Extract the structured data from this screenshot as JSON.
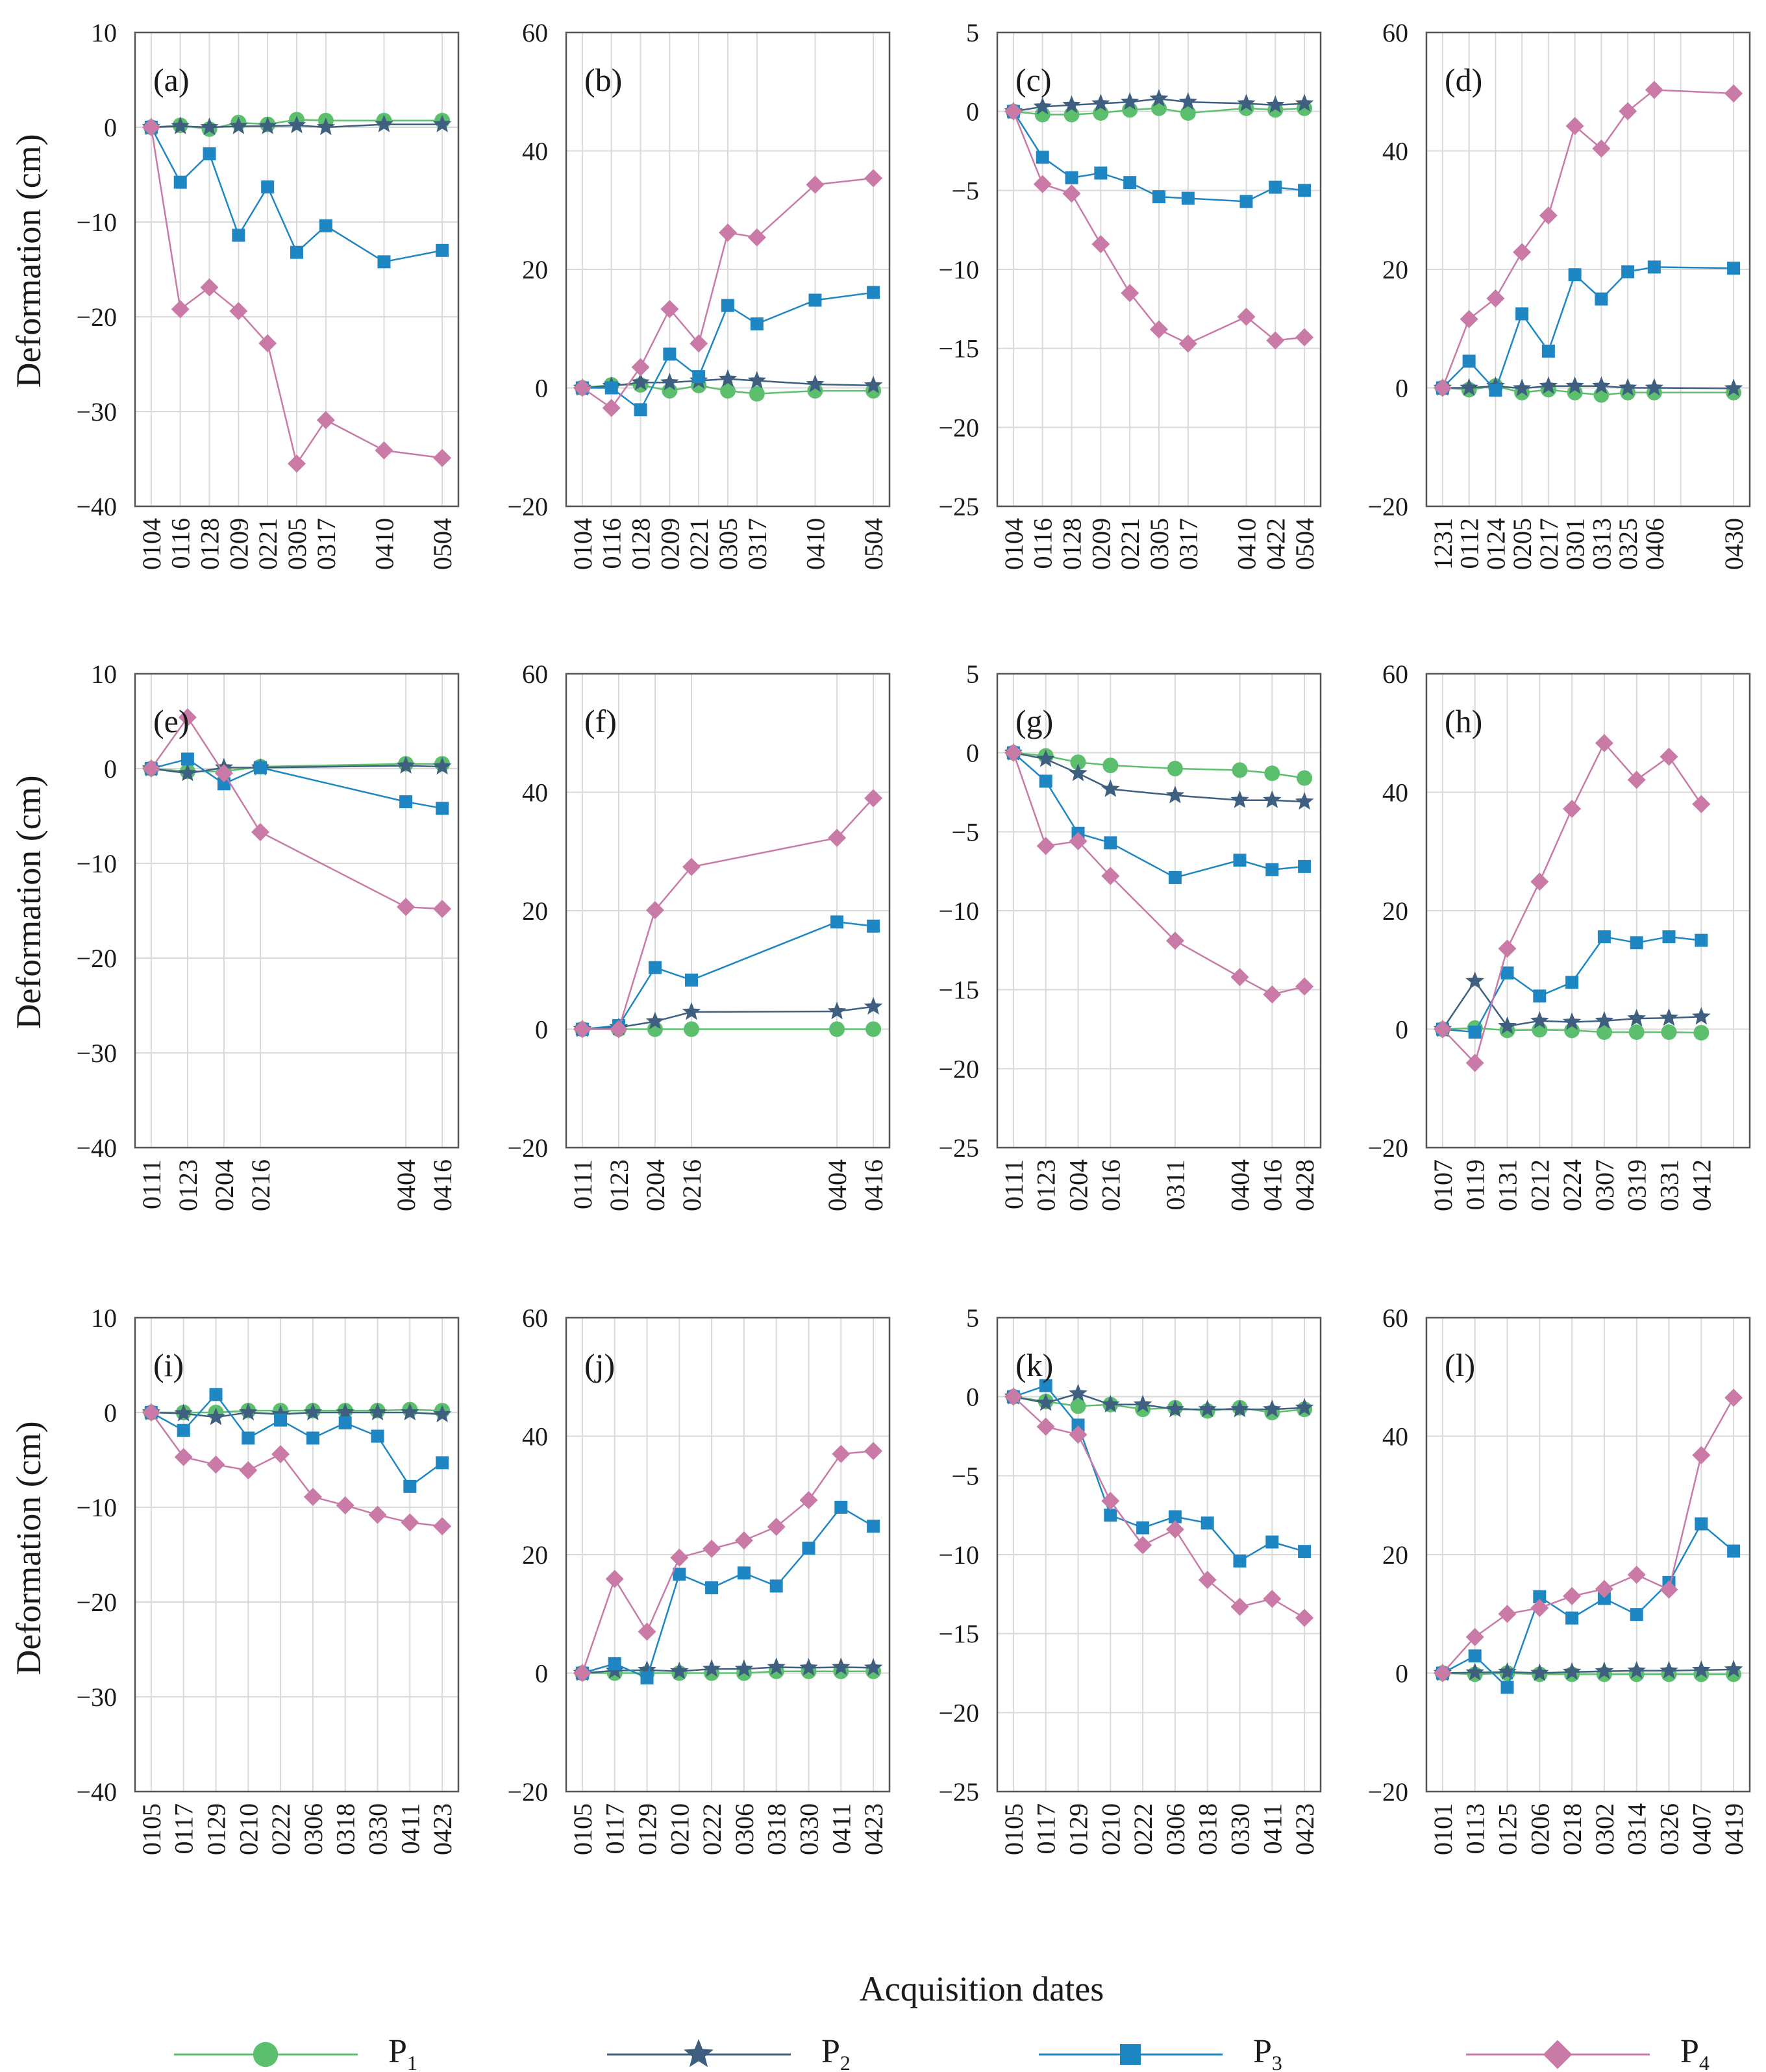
{
  "figure": {
    "ylabel": "Deformation (cm)",
    "xlabel": "Acquisition dates"
  },
  "legend": [
    {
      "key": "P1",
      "base": "P",
      "sub": "1"
    },
    {
      "key": "P2",
      "base": "P",
      "sub": "2"
    },
    {
      "key": "P3",
      "base": "P",
      "sub": "3"
    },
    {
      "key": "P4",
      "base": "P",
      "sub": "4"
    }
  ],
  "series_styles": {
    "P1": {
      "color": "#5cbf6e",
      "marker": "circle"
    },
    "P2": {
      "color": "#3f5f80",
      "marker": "star"
    },
    "P3": {
      "color": "#1f86c4",
      "marker": "square"
    },
    "P4": {
      "color": "#c97aa6",
      "marker": "diamond"
    }
  },
  "chart_data": [
    {
      "type": "line",
      "label": "(a)",
      "ylim": [
        -40,
        10
      ],
      "yticks": [
        10,
        0,
        -10,
        -20,
        -30,
        -40
      ],
      "x": [
        0,
        12,
        24,
        36,
        48,
        60,
        72,
        96,
        120
      ],
      "xticks": [
        "0104",
        "0116",
        "0128",
        "0209",
        "0221",
        "0305",
        "0317",
        "0410",
        "0504"
      ],
      "series": [
        {
          "name": "P1",
          "values": [
            0,
            0.2,
            -0.2,
            0.5,
            0.3,
            0.8,
            0.7,
            0.7,
            0.7
          ]
        },
        {
          "name": "P2",
          "values": [
            0,
            0.1,
            0,
            0.1,
            0.1,
            0.2,
            0,
            0.3,
            0.3
          ]
        },
        {
          "name": "P3",
          "values": [
            0,
            -5.8,
            -2.8,
            -11.4,
            -6.3,
            -13.2,
            -10.4,
            -14.2,
            -13
          ]
        },
        {
          "name": "P4",
          "values": [
            0,
            -19.2,
            -16.9,
            -19.4,
            -22.8,
            -35.5,
            -30.9,
            -34.1,
            -34.9
          ]
        }
      ]
    },
    {
      "type": "line",
      "label": "(b)",
      "ylim": [
        -20,
        60
      ],
      "yticks": [
        60,
        40,
        20,
        0,
        -20
      ],
      "x": [
        0,
        12,
        24,
        36,
        48,
        60,
        72,
        96,
        120
      ],
      "xticks": [
        "0104",
        "0116",
        "0128",
        "0209",
        "0221",
        "0305",
        "0317",
        "0410",
        "0504"
      ],
      "series": [
        {
          "name": "P1",
          "values": [
            0,
            0.5,
            0.5,
            -0.5,
            0.4,
            -0.5,
            -1,
            -0.5,
            -0.5
          ]
        },
        {
          "name": "P2",
          "values": [
            0,
            0.3,
            0.9,
            0.9,
            1.2,
            1.5,
            1.2,
            0.6,
            0.4
          ]
        },
        {
          "name": "P3",
          "values": [
            0,
            0,
            -3.7,
            5.7,
            1.9,
            13.9,
            10.8,
            14.8,
            16.1
          ]
        },
        {
          "name": "P4",
          "values": [
            0,
            -3.4,
            3.5,
            13.3,
            7.5,
            26.2,
            25.4,
            34.3,
            35.4
          ]
        }
      ]
    },
    {
      "type": "line",
      "label": "(c)",
      "ylim": [
        -25,
        5
      ],
      "yticks": [
        5,
        0,
        -5,
        -10,
        -15,
        -20,
        -25
      ],
      "x": [
        0,
        12,
        24,
        36,
        48,
        60,
        72,
        96,
        108,
        120
      ],
      "xticks": [
        "0104",
        "0116",
        "0128",
        "0209",
        "0221",
        "0305",
        "0317",
        "0410",
        "0422",
        "0504"
      ],
      "series": [
        {
          "name": "P1",
          "values": [
            0,
            -0.2,
            -0.2,
            -0.1,
            0.1,
            0.2,
            -0.1,
            0.2,
            0.1,
            0.2
          ]
        },
        {
          "name": "P2",
          "values": [
            0,
            0.3,
            0.4,
            0.5,
            0.6,
            0.8,
            0.6,
            0.5,
            0.4,
            0.5
          ]
        },
        {
          "name": "P3",
          "values": [
            0,
            -2.9,
            -4.2,
            -3.9,
            -4.5,
            -5.4,
            -5.5,
            -5.7,
            -4.8,
            -5
          ]
        },
        {
          "name": "P4",
          "values": [
            0,
            -4.6,
            -5.2,
            -8.4,
            -11.5,
            -13.8,
            -14.7,
            -13,
            -14.5,
            -14.3
          ]
        }
      ]
    },
    {
      "type": "line",
      "label": "(d)",
      "ylim": [
        -20,
        60
      ],
      "yticks": [
        60,
        40,
        20,
        0,
        -20
      ],
      "x": [
        0,
        12,
        24,
        36,
        48,
        60,
        72,
        84,
        96,
        108,
        132
      ],
      "xticks": [
        "1231",
        "0112",
        "0124",
        "0205",
        "0217",
        "0301",
        "0313",
        "0325",
        "0406",
        "",
        "0430"
      ],
      "series": [
        {
          "name": "P1",
          "values": [
            0,
            -0.3,
            0.3,
            -0.8,
            -0.3,
            -0.8,
            -1.2,
            -0.8,
            -0.8,
            null,
            -0.8
          ]
        },
        {
          "name": "P2",
          "values": [
            0,
            0,
            0.3,
            -0.1,
            0.3,
            0.3,
            0.3,
            0,
            0,
            null,
            -0.1
          ]
        },
        {
          "name": "P3",
          "values": [
            0,
            4.5,
            -0.4,
            12.5,
            6.2,
            19.1,
            15,
            19.6,
            20.4,
            null,
            20.2
          ]
        },
        {
          "name": "P4",
          "values": [
            0,
            11.6,
            15.1,
            22.9,
            29.1,
            44.2,
            40.4,
            46.7,
            50.3,
            null,
            49.7
          ]
        }
      ]
    },
    {
      "type": "line",
      "label": "(e)",
      "ylim": [
        -40,
        10
      ],
      "yticks": [
        10,
        0,
        -10,
        -20,
        -30,
        -40
      ],
      "x": [
        0,
        12,
        24,
        36,
        84,
        96
      ],
      "xticks": [
        "0111",
        "0123",
        "0204",
        "0216",
        "0404",
        "0416"
      ],
      "series": [
        {
          "name": "P1",
          "values": [
            0,
            -0.3,
            -0.3,
            0.2,
            0.5,
            0.5
          ]
        },
        {
          "name": "P2",
          "values": [
            0,
            -0.5,
            0.1,
            0.1,
            0.3,
            0.2
          ]
        },
        {
          "name": "P3",
          "values": [
            0,
            1,
            -1.6,
            0.1,
            -3.5,
            -4.2
          ]
        },
        {
          "name": "P4",
          "values": [
            0,
            5.4,
            -0.5,
            -6.7,
            -14.6,
            -14.8
          ]
        }
      ]
    },
    {
      "type": "line",
      "label": "(f)",
      "ylim": [
        -20,
        60
      ],
      "yticks": [
        60,
        40,
        20,
        0,
        -20
      ],
      "x": [
        0,
        12,
        24,
        36,
        84,
        96
      ],
      "xticks": [
        "0111",
        "0123",
        "0204",
        "0216",
        "0404",
        "0416"
      ],
      "series": [
        {
          "name": "P1",
          "values": [
            0,
            0,
            0,
            0,
            0,
            0
          ]
        },
        {
          "name": "P2",
          "values": [
            0,
            0.3,
            1.3,
            2.9,
            3,
            3.8
          ]
        },
        {
          "name": "P3",
          "values": [
            0,
            0.6,
            10.4,
            8.3,
            18.1,
            17.4
          ]
        },
        {
          "name": "P4",
          "values": [
            0,
            0,
            20.1,
            27.4,
            32.3,
            39
          ]
        }
      ]
    },
    {
      "type": "line",
      "label": "(g)",
      "ylim": [
        -25,
        5
      ],
      "yticks": [
        5,
        0,
        -5,
        -10,
        -15,
        -20,
        -25
      ],
      "x": [
        0,
        12,
        24,
        36,
        60,
        84,
        96,
        108
      ],
      "xticks": [
        "0111",
        "0123",
        "0204",
        "0216",
        "0311",
        "0404",
        "0416",
        "0428"
      ],
      "series": [
        {
          "name": "P1",
          "values": [
            0,
            -0.2,
            -0.6,
            -0.8,
            -1,
            -1.1,
            -1.3,
            -1.6
          ]
        },
        {
          "name": "P2",
          "values": [
            0,
            -0.4,
            -1.3,
            -2.3,
            -2.7,
            -3,
            -3,
            -3.1
          ]
        },
        {
          "name": "P3",
          "values": [
            0,
            -1.8,
            -5.1,
            -5.7,
            -7.9,
            -6.8,
            -7.4,
            -7.2
          ]
        },
        {
          "name": "P4",
          "values": [
            0,
            -5.9,
            -5.6,
            -7.8,
            -11.9,
            -14.2,
            -15.3,
            -14.8
          ]
        }
      ]
    },
    {
      "type": "line",
      "label": "(h)",
      "ylim": [
        -20,
        60
      ],
      "yticks": [
        60,
        40,
        20,
        0,
        -20
      ],
      "x": [
        0,
        12,
        24,
        36,
        48,
        60,
        72,
        84,
        96,
        108
      ],
      "xticks": [
        "0107",
        "0119",
        "0131",
        "0212",
        "0224",
        "0307",
        "0319",
        "0331",
        "0412",
        ""
      ],
      "series": [
        {
          "name": "P1",
          "values": [
            0,
            0.2,
            -0.2,
            -0.1,
            -0.2,
            -0.5,
            -0.5,
            -0.5,
            -0.6,
            null
          ]
        },
        {
          "name": "P2",
          "values": [
            0,
            8.1,
            0.5,
            1.4,
            1.2,
            1.4,
            1.8,
            1.9,
            2.1,
            null
          ]
        },
        {
          "name": "P3",
          "values": [
            0,
            -0.5,
            9.5,
            5.6,
            7.9,
            15.6,
            14.6,
            15.6,
            15,
            null
          ]
        },
        {
          "name": "P4",
          "values": [
            0,
            -5.7,
            13.6,
            24.9,
            37.2,
            48.3,
            42.1,
            46,
            38,
            null
          ]
        }
      ]
    },
    {
      "type": "line",
      "label": "(i)",
      "ylim": [
        -40,
        10
      ],
      "yticks": [
        10,
        0,
        -10,
        -20,
        -30,
        -40
      ],
      "x": [
        0,
        12,
        24,
        36,
        48,
        60,
        72,
        84,
        96,
        108
      ],
      "xticks": [
        "0105",
        "0117",
        "0129",
        "0210",
        "0222",
        "0306",
        "0318",
        "0330",
        "0411",
        "0423"
      ],
      "series": [
        {
          "name": "P1",
          "values": [
            0,
            0,
            0,
            0.2,
            0.2,
            0.2,
            0.2,
            0.2,
            0.3,
            0.2
          ]
        },
        {
          "name": "P2",
          "values": [
            0,
            -0.1,
            -0.5,
            0,
            -0.2,
            0,
            0,
            0,
            0,
            -0.2
          ]
        },
        {
          "name": "P3",
          "values": [
            0,
            -1.9,
            1.9,
            -2.7,
            -0.8,
            -2.7,
            -1.1,
            -2.5,
            -7.8,
            -5.3
          ]
        },
        {
          "name": "P4",
          "values": [
            0,
            -4.7,
            -5.5,
            -6.1,
            -4.4,
            -8.9,
            -9.8,
            -10.8,
            -11.6,
            -12
          ]
        }
      ]
    },
    {
      "type": "line",
      "label": "(j)",
      "ylim": [
        -20,
        60
      ],
      "yticks": [
        60,
        40,
        20,
        0,
        -20
      ],
      "x": [
        0,
        12,
        24,
        36,
        48,
        60,
        72,
        84,
        96,
        108
      ],
      "xticks": [
        "0105",
        "0117",
        "0129",
        "0210",
        "0222",
        "0306",
        "0318",
        "0330",
        "0411",
        "0423"
      ],
      "series": [
        {
          "name": "P1",
          "values": [
            0,
            0,
            0,
            0,
            0,
            0,
            0.3,
            0.3,
            0.3,
            0.3
          ]
        },
        {
          "name": "P2",
          "values": [
            0,
            0.4,
            0.5,
            0.3,
            0.7,
            0.7,
            1,
            0.9,
            1,
            0.9
          ]
        },
        {
          "name": "P3",
          "values": [
            0,
            1.6,
            -0.8,
            16.7,
            14.4,
            16.9,
            14.7,
            21.1,
            28,
            24.8
          ]
        },
        {
          "name": "P4",
          "values": [
            0,
            15.9,
            7,
            19.5,
            21,
            22.4,
            24.7,
            29.2,
            37,
            37.5
          ]
        }
      ]
    },
    {
      "type": "line",
      "label": "(k)",
      "ylim": [
        -25,
        5
      ],
      "yticks": [
        5,
        0,
        -5,
        -10,
        -15,
        -20,
        -25
      ],
      "x": [
        0,
        12,
        24,
        36,
        48,
        60,
        72,
        84,
        96,
        108
      ],
      "xticks": [
        "0105",
        "0117",
        "0129",
        "0210",
        "0222",
        "0306",
        "0318",
        "0330",
        "0411",
        "0423"
      ],
      "series": [
        {
          "name": "P1",
          "values": [
            0,
            -0.3,
            -0.6,
            -0.5,
            -0.8,
            -0.7,
            -0.9,
            -0.7,
            -1,
            -0.8
          ]
        },
        {
          "name": "P2",
          "values": [
            0,
            -0.4,
            0.2,
            -0.5,
            -0.5,
            -0.8,
            -0.8,
            -0.8,
            -0.8,
            -0.7
          ]
        },
        {
          "name": "P3",
          "values": [
            0,
            0.7,
            -1.8,
            -7.5,
            -8.3,
            -7.6,
            -8,
            -10.4,
            -9.2,
            -9.8
          ]
        },
        {
          "name": "P4",
          "values": [
            0,
            -1.9,
            -2.4,
            -6.6,
            -9.4,
            -8.4,
            -11.6,
            -13.3,
            -12.8,
            -14
          ]
        }
      ]
    },
    {
      "type": "line",
      "label": "(l)",
      "ylim": [
        -20,
        60
      ],
      "yticks": [
        60,
        40,
        20,
        0,
        -20
      ],
      "x": [
        0,
        12,
        24,
        36,
        48,
        60,
        72,
        84,
        96,
        108
      ],
      "xticks": [
        "0101",
        "0113",
        "0125",
        "0206",
        "0218",
        "0302",
        "0314",
        "0326",
        "0407",
        "0419"
      ],
      "series": [
        {
          "name": "P1",
          "values": [
            0,
            -0.2,
            0,
            -0.2,
            -0.2,
            -0.2,
            -0.2,
            -0.2,
            -0.2,
            -0.2
          ]
        },
        {
          "name": "P2",
          "values": [
            0,
            0.1,
            0.2,
            0,
            0.2,
            0.3,
            0.4,
            0.4,
            0.5,
            0.6
          ]
        },
        {
          "name": "P3",
          "values": [
            0,
            2.9,
            -2.4,
            12.9,
            9.3,
            12.6,
            9.9,
            15.3,
            25.2,
            20.6
          ]
        },
        {
          "name": "P4",
          "values": [
            0,
            6.1,
            10,
            11,
            13,
            14.2,
            16.6,
            14.1,
            36.8,
            46.5
          ]
        }
      ]
    }
  ]
}
